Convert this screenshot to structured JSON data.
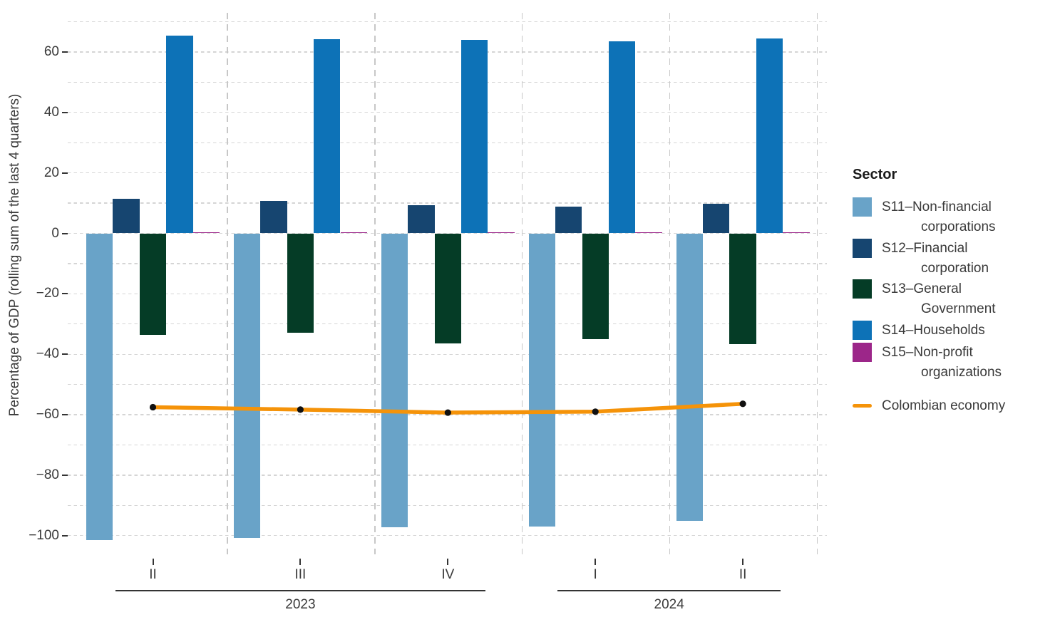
{
  "chart_data": {
    "type": "bar",
    "title": "",
    "ylabel": "Percentage of GDP (rolling sum of the last 4 quarters)",
    "categories": [
      "II 2023",
      "III 2023",
      "IV 2023",
      "I 2024",
      "II 2024"
    ],
    "quarter_labels": [
      "II",
      "III",
      "IV",
      "I",
      "II"
    ],
    "year_groups": [
      {
        "label": "2023",
        "from": 0,
        "to": 2
      },
      {
        "label": "2024",
        "from": 3,
        "to": 4
      }
    ],
    "ylim": [
      -106,
      72
    ],
    "grid": "dashed horizontal gridlines every 10, dashed vertical separators between quarters",
    "legend_position": "right",
    "series": [
      {
        "key": "s11",
        "name": "S11–Non-financial corporations",
        "color": "#69A3C8",
        "values": [
          -101.4,
          -100.8,
          -97.3,
          -97.1,
          -95.0
        ]
      },
      {
        "key": "s12",
        "name": "S12–Financial corporation",
        "color": "#164570",
        "values": [
          11.5,
          10.8,
          9.4,
          8.9,
          9.8
        ]
      },
      {
        "key": "s13",
        "name": "S13–General Government",
        "color": "#053C26",
        "values": [
          -33.5,
          -32.8,
          -36.4,
          -34.9,
          -36.7
        ]
      },
      {
        "key": "s14",
        "name": "S14–Households",
        "color": "#0D72B7",
        "values": [
          65.3,
          64.2,
          64.1,
          63.5,
          64.5
        ]
      },
      {
        "key": "s15",
        "name": "S15–Non-profit organizations",
        "color": "#9C2689",
        "values": [
          0.4,
          0.4,
          0.4,
          0.4,
          0.4
        ]
      }
    ],
    "line_series": {
      "key": "colombian-economy",
      "name": "Colombian economy",
      "color": "#F59309",
      "marker_color": "#111111",
      "values": [
        -57.5,
        -58.3,
        -59.3,
        -59.0,
        -56.4
      ]
    },
    "y_ticks_major": [
      60,
      40,
      20,
      0,
      -20,
      -40,
      -60,
      -80,
      -100
    ],
    "y_ticks_minor": [
      70,
      50,
      30,
      10,
      -10,
      -30,
      -50,
      -70,
      -90
    ],
    "y_tick_labels": [
      "60",
      "40",
      "20",
      "0",
      "−20",
      "−40",
      "−60",
      "−80",
      "−100"
    ]
  },
  "legend": {
    "title": "Sector",
    "items": [
      {
        "key": "s11",
        "lines": [
          "S11–Non-financial",
          "corporations"
        ],
        "color": "#69A3C8",
        "type": "swatch"
      },
      {
        "key": "s12",
        "lines": [
          "S12–Financial",
          "corporation"
        ],
        "color": "#164570",
        "type": "swatch"
      },
      {
        "key": "s13",
        "lines": [
          "S13–General",
          "Government"
        ],
        "color": "#053C26",
        "type": "swatch"
      },
      {
        "key": "s14",
        "lines": [
          "S14–Households"
        ],
        "color": "#0D72B7",
        "type": "swatch"
      },
      {
        "key": "s15",
        "lines": [
          "S15–Non-profit",
          "organizations"
        ],
        "color": "#9C2689",
        "type": "swatch"
      },
      {
        "key": "colombian-economy",
        "lines": [
          "Colombian economy"
        ],
        "color": "#F59309",
        "type": "line"
      }
    ]
  }
}
